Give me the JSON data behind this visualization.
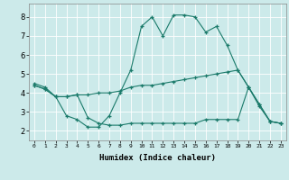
{
  "xlabel": "Humidex (Indice chaleur)",
  "xlim": [
    -0.5,
    23.5
  ],
  "ylim": [
    1.5,
    8.7
  ],
  "xticks": [
    0,
    1,
    2,
    3,
    4,
    5,
    6,
    7,
    8,
    9,
    10,
    11,
    12,
    13,
    14,
    15,
    16,
    17,
    18,
    19,
    20,
    21,
    22,
    23
  ],
  "yticks": [
    2,
    3,
    4,
    5,
    6,
    7,
    8
  ],
  "background_color": "#cceaea",
  "line_color": "#1a7a6a",
  "grid_color": "#ffffff",
  "line1_x": [
    0,
    1,
    2,
    3,
    4,
    5,
    6,
    7,
    8,
    9,
    10,
    11,
    12,
    13,
    14,
    15,
    16,
    17,
    18,
    19,
    20,
    21,
    22,
    23
  ],
  "line1_y": [
    4.5,
    4.3,
    3.8,
    2.8,
    2.6,
    2.2,
    2.2,
    2.8,
    4.0,
    5.2,
    7.5,
    8.0,
    7.0,
    8.1,
    8.1,
    8.0,
    7.2,
    7.5,
    6.5,
    5.2,
    4.3,
    3.3,
    2.5,
    2.4
  ],
  "line2_x": [
    0,
    1,
    2,
    3,
    4,
    5,
    6,
    7,
    8,
    9,
    10,
    11,
    12,
    13,
    14,
    15,
    16,
    17,
    18,
    19,
    20,
    21,
    22,
    23
  ],
  "line2_y": [
    4.4,
    4.2,
    3.8,
    3.8,
    3.9,
    3.9,
    4.0,
    4.0,
    4.1,
    4.3,
    4.4,
    4.4,
    4.5,
    4.6,
    4.7,
    4.8,
    4.9,
    5.0,
    5.1,
    5.2,
    4.3,
    3.4,
    2.5,
    2.4
  ],
  "line3_x": [
    0,
    1,
    2,
    3,
    4,
    5,
    6,
    7,
    8,
    9,
    10,
    11,
    12,
    13,
    14,
    15,
    16,
    17,
    18,
    19,
    20,
    21,
    22,
    23
  ],
  "line3_y": [
    4.4,
    4.2,
    3.8,
    3.8,
    3.9,
    2.7,
    2.4,
    2.3,
    2.3,
    2.4,
    2.4,
    2.4,
    2.4,
    2.4,
    2.4,
    2.4,
    2.6,
    2.6,
    2.6,
    2.6,
    4.3,
    3.4,
    2.5,
    2.4
  ]
}
